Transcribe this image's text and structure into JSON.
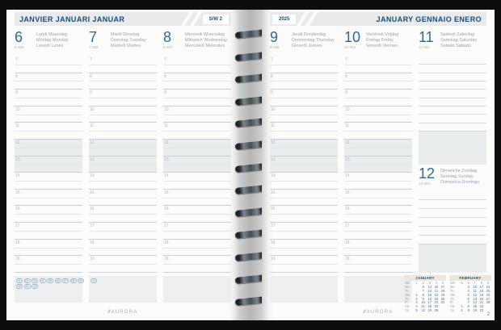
{
  "brand": {
    "logo_mark": "///",
    "logo": "AURORA",
    "page_number": "2"
  },
  "left_page": {
    "header": {
      "title": "JANVIER  JANUARI  JANUAR",
      "week_label": "S/W 2"
    },
    "days": [
      {
        "number": "6",
        "day_of_year": "6-359",
        "names": [
          "Lundi  Maandag",
          "Montag  Monday",
          "Lunedì  Lunes"
        ]
      },
      {
        "number": "7",
        "day_of_year": "7-358",
        "names": [
          "Mardi  Dinsdag",
          "Dienstag  Tuesday",
          "Martedì  Martes"
        ]
      },
      {
        "number": "8",
        "day_of_year": "8-357",
        "names": [
          "Mercredi  Woensdag",
          "Mittwoch  Wednesday",
          "Mercoledì  Miércoles"
        ]
      }
    ],
    "hours": [
      "7",
      "8",
      "9",
      "10",
      "11",
      "12",
      "13",
      "14",
      "15",
      "16",
      "17",
      "18",
      "19"
    ],
    "lunch_hours": [
      "12",
      "13"
    ],
    "notes_chips": {
      "box1_row1": [
        "01",
        "02",
        "03",
        "04",
        "05",
        "06",
        "07",
        "08",
        "09"
      ],
      "box1_row2": [
        "10",
        "11",
        "12"
      ],
      "box2": [
        "13"
      ]
    }
  },
  "right_page": {
    "header": {
      "year": "2025",
      "title": "JANUARY  GENNAIO  ENERO"
    },
    "days": [
      {
        "number": "9",
        "day_of_year": "9-356",
        "names": [
          "Jeudi  Donderdag",
          "Donnerstag  Thursday",
          "Giovedì  Jueves"
        ]
      },
      {
        "number": "10",
        "day_of_year": "10-355",
        "names": [
          "Vendredi  Vrijdag",
          "Freitag  Friday",
          "Venerdì  Viernes"
        ]
      },
      {
        "number": "11",
        "day_of_year": "11-354",
        "names": [
          "Samedi  Zaterdag",
          "Samstag  Saturday",
          "Sabato  Sábado"
        ]
      }
    ],
    "sunday": {
      "number": "12",
      "day_of_year": "12-353",
      "names": [
        "Dimanche  Zondag",
        "Sonntag  Sunday",
        "Domenica  Domingo"
      ]
    },
    "hours": [
      "7",
      "8",
      "9",
      "10",
      "11",
      "12",
      "13",
      "14",
      "15",
      "16",
      "17",
      "18",
      "19"
    ],
    "lunch_hours": [
      "12",
      "13"
    ],
    "mini_calendars": [
      {
        "title": "JANUARY",
        "header": [
          "We",
          "1",
          "2",
          "3",
          "4",
          "5"
        ],
        "rows": [
          [
            "Mo",
            "",
            "6",
            "13",
            "20",
            "27"
          ],
          [
            "Tu",
            "",
            "7",
            "14",
            "21",
            "28"
          ],
          [
            "We",
            "1",
            "8",
            "15",
            "22",
            "29"
          ],
          [
            "Th",
            "2",
            "9",
            "16",
            "23",
            "30"
          ],
          [
            "Fr",
            "3",
            "10",
            "17",
            "24",
            "31"
          ],
          [
            "Sa",
            "4",
            "11",
            "18",
            "25",
            ""
          ],
          [
            "Su",
            "5",
            "12",
            "19",
            "26",
            ""
          ]
        ]
      },
      {
        "title": "FEBRUARY",
        "header": [
          "We",
          "5",
          "6",
          "7",
          "8",
          "9"
        ],
        "rows": [
          [
            "Mo",
            "",
            "3",
            "10",
            "17",
            "24"
          ],
          [
            "Tu",
            "",
            "4",
            "11",
            "18",
            "25"
          ],
          [
            "We",
            "",
            "5",
            "12",
            "19",
            "26"
          ],
          [
            "Th",
            "",
            "6",
            "13",
            "20",
            "27"
          ],
          [
            "Fr",
            "",
            "7",
            "14",
            "21",
            "28"
          ],
          [
            "Sa",
            "1",
            "8",
            "15",
            "22",
            ""
          ],
          [
            "Su",
            "2",
            "9",
            "16",
            "23",
            ""
          ]
        ]
      }
    ]
  }
}
